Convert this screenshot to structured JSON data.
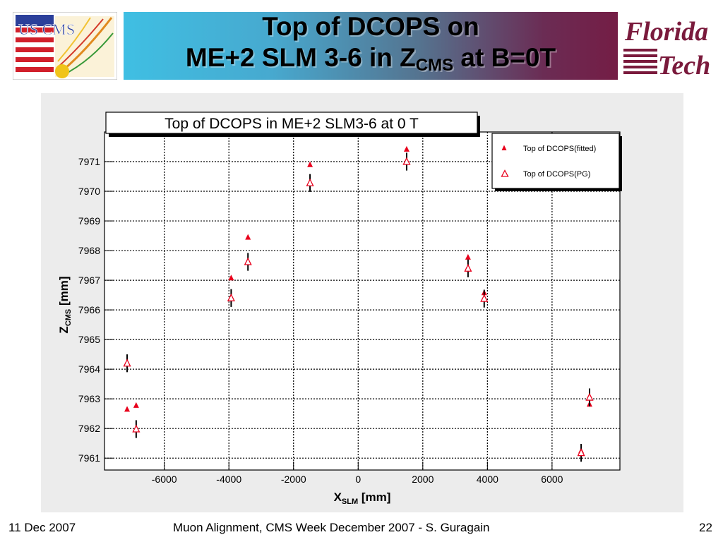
{
  "header": {
    "title_line1": "Top of DCOPS on",
    "title_line2_pre": "ME+2 SLM 3-6 in Z",
    "title_line2_sub": "CMS",
    "title_line2_post": " at B=0T",
    "left_logo_text": "US CMS",
    "right_logo_line1": "Florida",
    "right_logo_line2": "Tech"
  },
  "footer": {
    "date": "11 Dec 2007",
    "center": "Muon Alignment, CMS Week December 2007  - S. Guragain",
    "page": "22"
  },
  "chart_data": {
    "type": "scatter",
    "title": "Top of DCOPS in ME+2 SLM3-6 at 0 T",
    "xlabel_main": "X",
    "xlabel_sub": "SLM",
    "xlabel_unit": " [mm]",
    "ylabel_main": "Z",
    "ylabel_sub": "CMS",
    "ylabel_unit": " [mm]",
    "xlim": [
      -7850,
      8100
    ],
    "ylim": [
      7960.6,
      7972.0
    ],
    "xticks": [
      -6000,
      -4000,
      -2000,
      0,
      2000,
      4000,
      6000
    ],
    "xtick_labels": [
      "-6000",
      "-4000",
      "-2000",
      "0",
      "2000",
      "4000",
      "6000"
    ],
    "yticks": [
      7961,
      7962,
      7963,
      7964,
      7965,
      7966,
      7967,
      7968,
      7969,
      7970,
      7971
    ],
    "ytick_labels": [
      "7961",
      "7962",
      "7963",
      "7964",
      "7965",
      "7966",
      "7967",
      "7968",
      "7969",
      "7970",
      "7971"
    ],
    "grid": true,
    "legend_position": "top-right",
    "series": [
      {
        "name": "Top of DCOPS(fitted)",
        "marker": "filled-triangle",
        "color": "#e8001c",
        "points": [
          {
            "x": -7150,
            "y": 7962.65
          },
          {
            "x": -6870,
            "y": 7962.78
          },
          {
            "x": -3930,
            "y": 7967.08
          },
          {
            "x": -3410,
            "y": 7968.45
          },
          {
            "x": -1490,
            "y": 7970.9
          },
          {
            "x": 1500,
            "y": 7971.42
          },
          {
            "x": 3400,
            "y": 7967.78
          },
          {
            "x": 3900,
            "y": 7966.58
          },
          {
            "x": 6900,
            "y": 7961.25
          },
          {
            "x": 7160,
            "y": 7962.82
          }
        ]
      },
      {
        "name": "Top of DCOPS(PG)",
        "marker": "open-triangle",
        "color": "#e8001c",
        "points": [
          {
            "x": -7150,
            "y": 7964.2,
            "err": 0.3
          },
          {
            "x": -6870,
            "y": 7961.98,
            "err": 0.3
          },
          {
            "x": -3930,
            "y": 7966.4,
            "err": 0.3
          },
          {
            "x": -3410,
            "y": 7967.62,
            "err": 0.3
          },
          {
            "x": -1490,
            "y": 7970.28,
            "err": 0.3
          },
          {
            "x": 1500,
            "y": 7971.0,
            "err": 0.3
          },
          {
            "x": 3400,
            "y": 7967.4,
            "err": 0.3
          },
          {
            "x": 3900,
            "y": 7966.38,
            "err": 0.3
          },
          {
            "x": 6900,
            "y": 7961.18,
            "err": 0.3
          },
          {
            "x": 7160,
            "y": 7963.05,
            "err": 0.3
          }
        ]
      }
    ]
  }
}
